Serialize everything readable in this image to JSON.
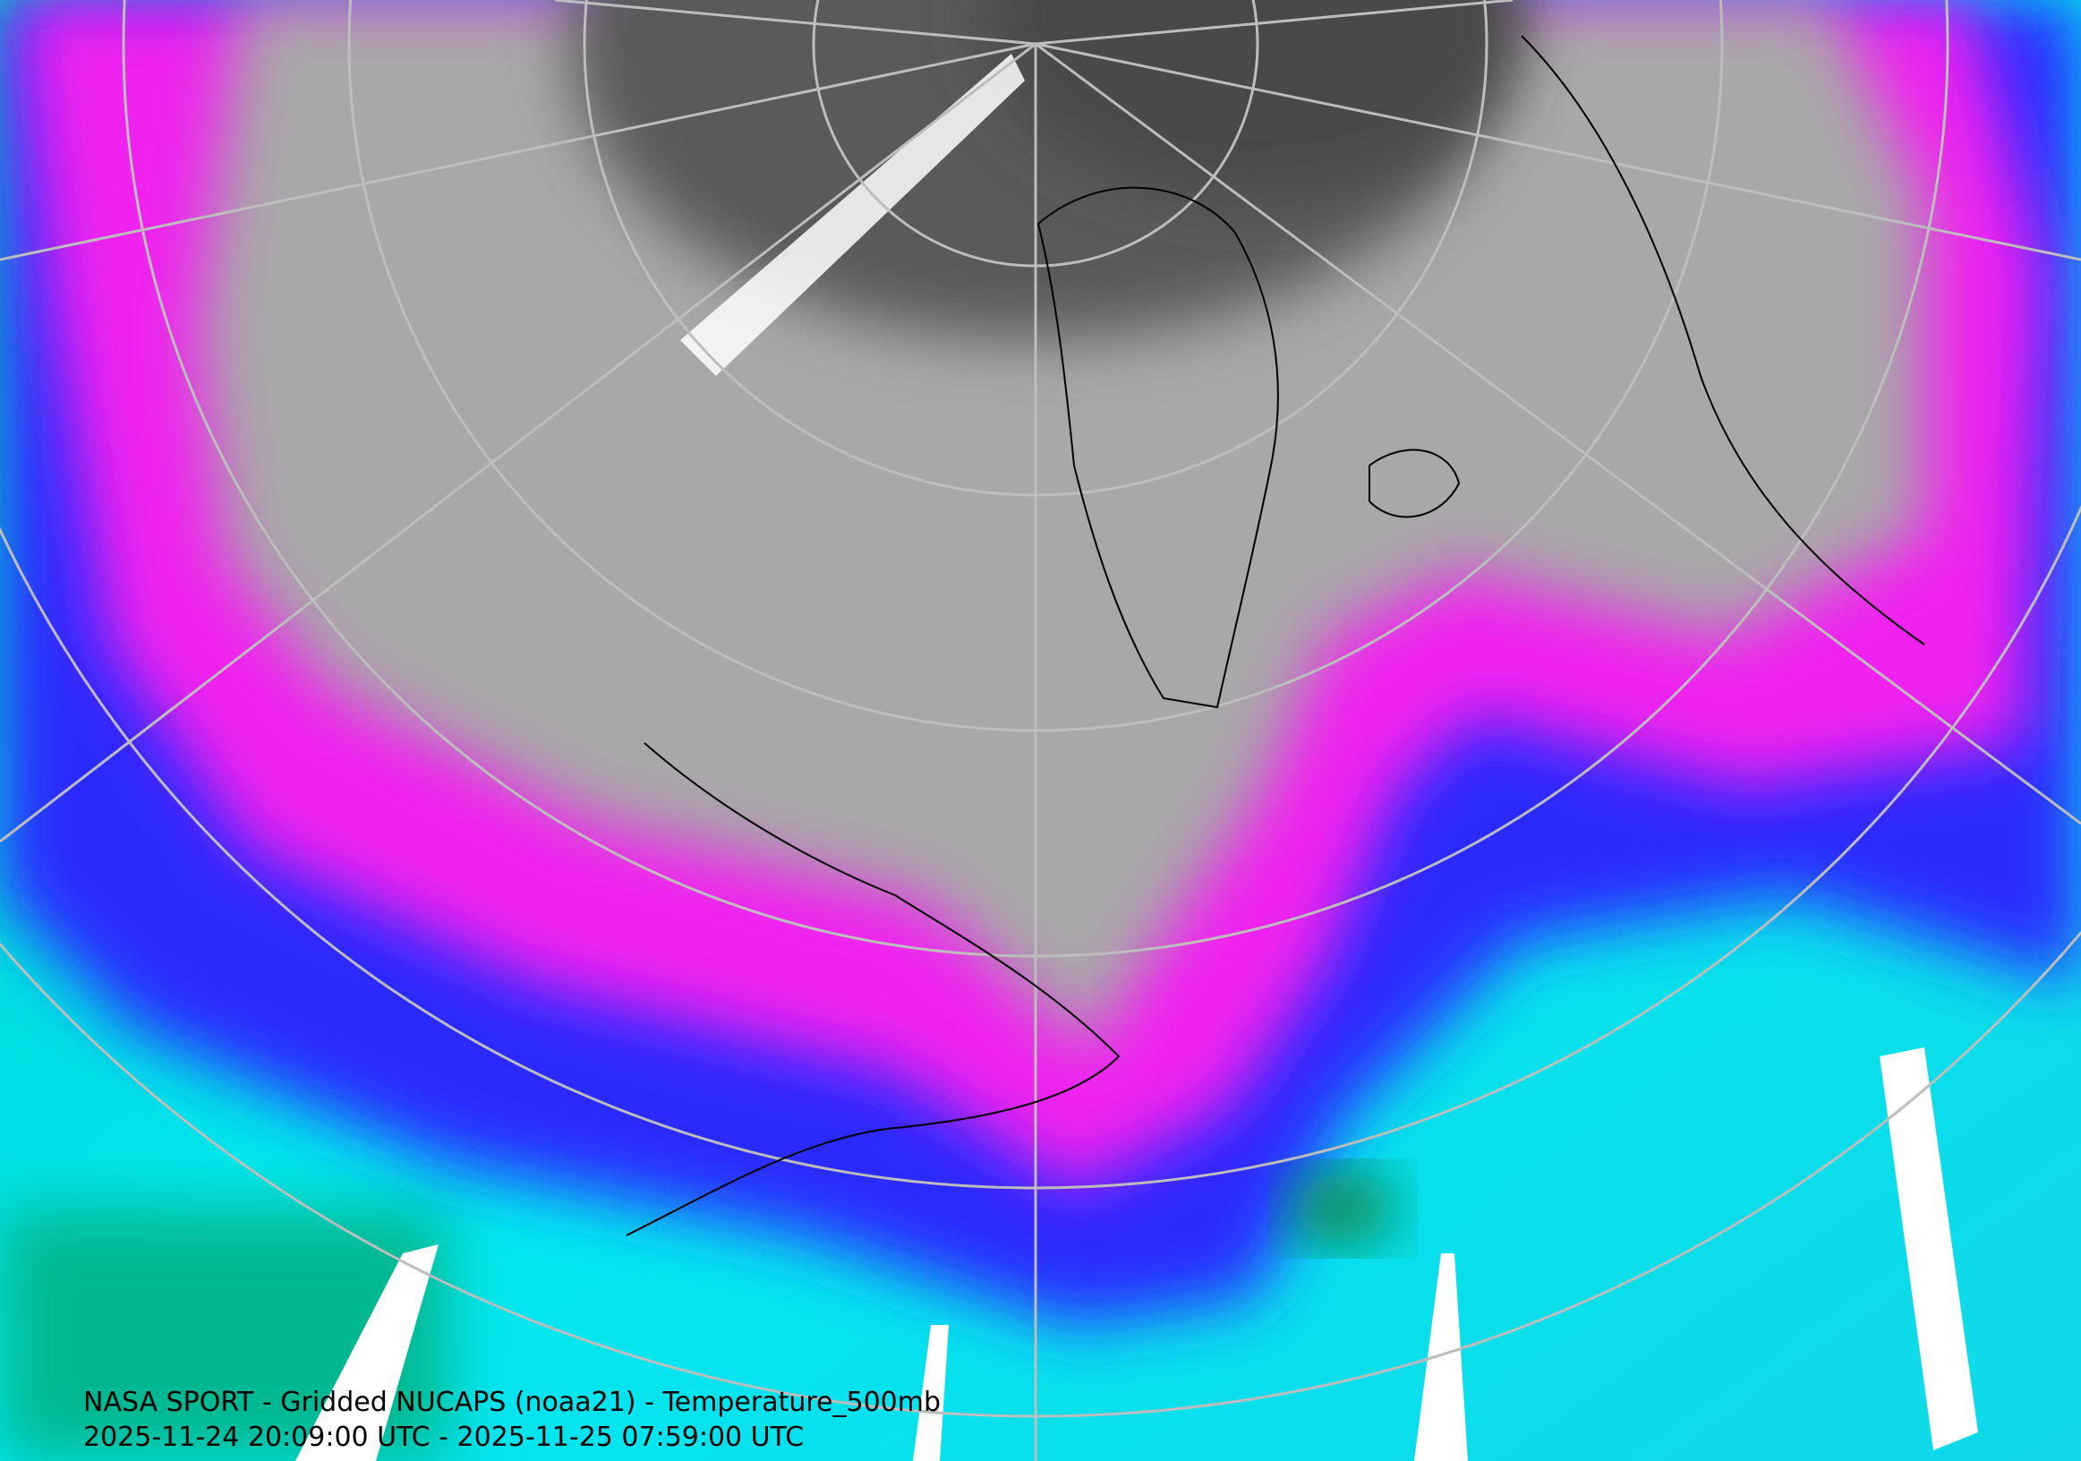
{
  "caption": {
    "title": "NASA SPORT - Gridded NUCAPS (noaa21) - Temperature_500mb",
    "time_range": "2025-11-24 20:09:00 UTC - 2025-11-25 07:59:00 UTC"
  }
}
